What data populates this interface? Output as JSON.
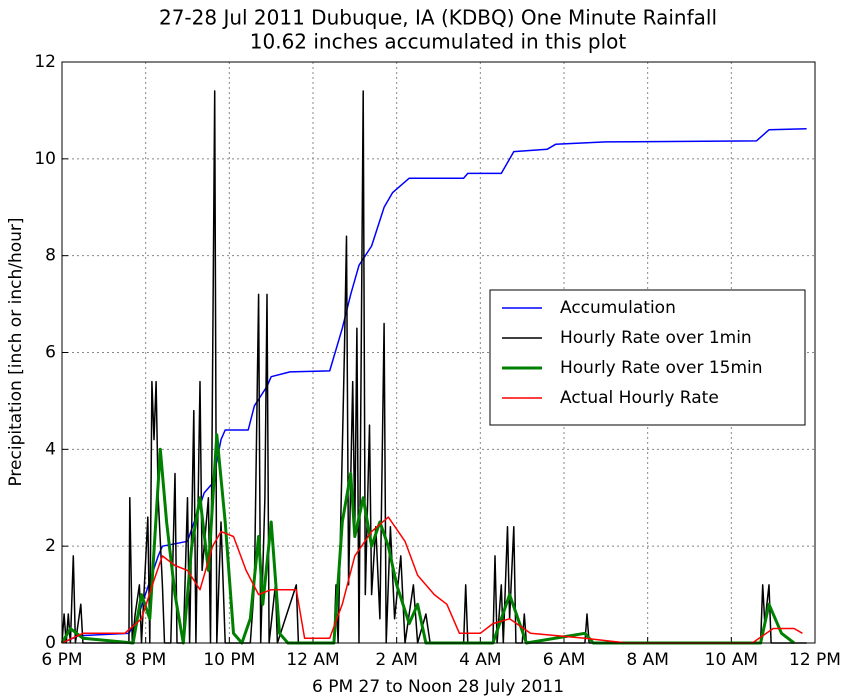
{
  "chart_data": {
    "type": "line",
    "title": "27-28 Jul 2011 Dubuque, IA (KDBQ) One Minute Rainfall",
    "subtitle": "10.62 inches accumulated in this plot",
    "x_label": "6 PM 27 to Noon 28 July 2011",
    "y_label": "Precipitation [inch or inch/hour]",
    "xlim": [
      0,
      18
    ],
    "ylim": [
      0,
      12
    ],
    "xticks": [
      {
        "value": 0,
        "label": "6 PM"
      },
      {
        "value": 2,
        "label": "8 PM"
      },
      {
        "value": 4,
        "label": "10 PM"
      },
      {
        "value": 6,
        "label": "12 AM"
      },
      {
        "value": 8,
        "label": "2 AM"
      },
      {
        "value": 10,
        "label": "4 AM"
      },
      {
        "value": 12,
        "label": "6 AM"
      },
      {
        "value": 14,
        "label": "8 AM"
      },
      {
        "value": 16,
        "label": "10 AM"
      },
      {
        "value": 18,
        "label": "12 PM"
      }
    ],
    "yticks": [
      0,
      2,
      4,
      6,
      8,
      10,
      12
    ],
    "grid": true,
    "legend": "right",
    "series": [
      {
        "name": "Accumulation",
        "color": "#0000ff",
        "width": 1.5,
        "x": [
          0,
          0.4,
          1.6,
          1.8,
          2.3,
          2.4,
          3.0,
          3.2,
          3.4,
          3.6,
          3.8,
          3.9,
          4.45,
          4.6,
          4.9,
          5.0,
          5.45,
          6.4,
          6.7,
          6.9,
          7.1,
          7.4,
          7.7,
          7.9,
          8.3,
          9.6,
          9.7,
          10.5,
          10.8,
          11.6,
          11.8,
          13.0,
          16.6,
          16.9,
          17.8
        ],
        "values": [
          0,
          0.15,
          0.2,
          0.5,
          1.8,
          2.0,
          2.1,
          2.6,
          3.1,
          3.3,
          4.2,
          4.4,
          4.4,
          4.9,
          5.3,
          5.5,
          5.6,
          5.62,
          6.5,
          7.2,
          7.8,
          8.2,
          9.0,
          9.3,
          9.6,
          9.6,
          9.7,
          9.7,
          10.15,
          10.2,
          10.3,
          10.35,
          10.37,
          10.6,
          10.62
        ]
      },
      {
        "name": "Hourly Rate over 1min",
        "color": "#000000",
        "width": 1.5,
        "x": [
          0,
          0.05,
          0.1,
          0.15,
          0.2,
          0.27,
          0.32,
          0.45,
          0.5,
          1.6,
          1.62,
          1.68,
          1.75,
          1.85,
          1.9,
          2.05,
          2.1,
          2.15,
          2.2,
          2.25,
          2.3,
          2.4,
          2.45,
          2.6,
          2.7,
          2.75,
          2.9,
          3.0,
          3.05,
          3.15,
          3.2,
          3.3,
          3.35,
          3.5,
          3.55,
          3.65,
          3.7,
          3.8,
          3.9,
          4.5,
          4.6,
          4.7,
          4.75,
          4.85,
          4.9,
          4.95,
          5.1,
          5.15,
          5.6,
          5.65,
          6.5,
          6.55,
          6.6,
          6.75,
          6.8,
          6.85,
          6.95,
          7.0,
          7.05,
          7.1,
          7.2,
          7.25,
          7.35,
          7.4,
          7.5,
          7.6,
          7.7,
          7.75,
          7.85,
          7.95,
          8.1,
          8.2,
          8.4,
          8.5,
          8.7,
          8.8,
          9.6,
          9.65,
          9.7,
          10.3,
          10.35,
          10.4,
          10.5,
          10.55,
          10.65,
          10.7,
          10.8,
          10.85,
          11.0,
          11.05,
          11.1,
          12.5,
          12.55,
          12.6,
          16.7,
          16.75,
          16.8,
          16.9,
          16.95,
          17.8
        ],
        "values": [
          0,
          0.6,
          0,
          0.6,
          0,
          1.8,
          0,
          0.8,
          0,
          0,
          3.0,
          0,
          0.6,
          1.2,
          0,
          2.6,
          0,
          5.4,
          4.2,
          5.4,
          3.0,
          1.2,
          0,
          0,
          3.5,
          0,
          0,
          3.0,
          0,
          4.8,
          0,
          5.4,
          1.5,
          3.0,
          0,
          11.4,
          0,
          2.5,
          0,
          0,
          1.2,
          7.2,
          0,
          3.0,
          7.2,
          0,
          1.2,
          0,
          1.2,
          0,
          0,
          1.2,
          0,
          6.0,
          8.4,
          1.2,
          5.4,
          2.4,
          6.5,
          0,
          11.4,
          1.0,
          4.5,
          1.0,
          2.4,
          0.5,
          6.6,
          0,
          2.4,
          0.5,
          1.8,
          0,
          1.2,
          0,
          0.6,
          0,
          0,
          1.2,
          0,
          0,
          1.8,
          0,
          1.2,
          0,
          2.4,
          0.5,
          2.4,
          0,
          0,
          0.6,
          0,
          0,
          0.6,
          0,
          0,
          1.2,
          0.4,
          1.2,
          0,
          0
        ]
      },
      {
        "name": "Hourly Rate over 15min",
        "color": "#008000",
        "width": 3,
        "x": [
          0,
          0.2,
          0.5,
          1.7,
          1.9,
          2.1,
          2.35,
          2.5,
          2.7,
          2.9,
          3.1,
          3.3,
          3.5,
          3.7,
          3.9,
          4.1,
          4.3,
          4.5,
          4.7,
          4.8,
          5.0,
          5.2,
          5.4,
          6.5,
          6.7,
          6.9,
          7.0,
          7.2,
          7.4,
          7.6,
          7.8,
          8.0,
          8.3,
          8.5,
          8.7,
          10.3,
          10.7,
          10.9,
          11.1,
          12.5,
          12.7,
          16.7,
          16.9,
          17.2,
          17.5
        ],
        "values": [
          0,
          0.3,
          0.1,
          0,
          1.0,
          0.5,
          4.0,
          2.5,
          1.0,
          0,
          2.0,
          3.0,
          1.5,
          4.3,
          2.5,
          0.2,
          0,
          0.5,
          2.2,
          0.8,
          2.5,
          0.2,
          0,
          0,
          2.5,
          3.5,
          2.2,
          3.0,
          2.0,
          2.5,
          2.0,
          1.2,
          0.4,
          0.8,
          0,
          0,
          1.0,
          0.5,
          0,
          0.2,
          0,
          0,
          0.8,
          0.2,
          0
        ]
      },
      {
        "name": "Actual Hourly Rate",
        "color": "#ff0000",
        "width": 1.5,
        "x": [
          0,
          0.5,
          1.5,
          1.9,
          2.2,
          2.4,
          2.7,
          3.0,
          3.3,
          3.6,
          3.8,
          4.1,
          4.4,
          4.7,
          5.0,
          5.6,
          5.8,
          6.4,
          6.7,
          7.0,
          7.4,
          7.8,
          8.2,
          8.5,
          8.9,
          9.2,
          9.5,
          10.0,
          10.3,
          10.7,
          11.2,
          12.5,
          13.5,
          16.5,
          17.0,
          17.5,
          17.7
        ],
        "values": [
          0,
          0.2,
          0.2,
          0.5,
          1.3,
          1.8,
          1.6,
          1.5,
          1.1,
          2.0,
          2.3,
          2.2,
          1.5,
          1.0,
          1.1,
          1.1,
          0.1,
          0.1,
          0.8,
          1.8,
          2.3,
          2.6,
          2.1,
          1.4,
          1.0,
          0.8,
          0.2,
          0.2,
          0.4,
          0.5,
          0.2,
          0.1,
          0,
          0,
          0.3,
          0.3,
          0.2
        ]
      }
    ]
  }
}
